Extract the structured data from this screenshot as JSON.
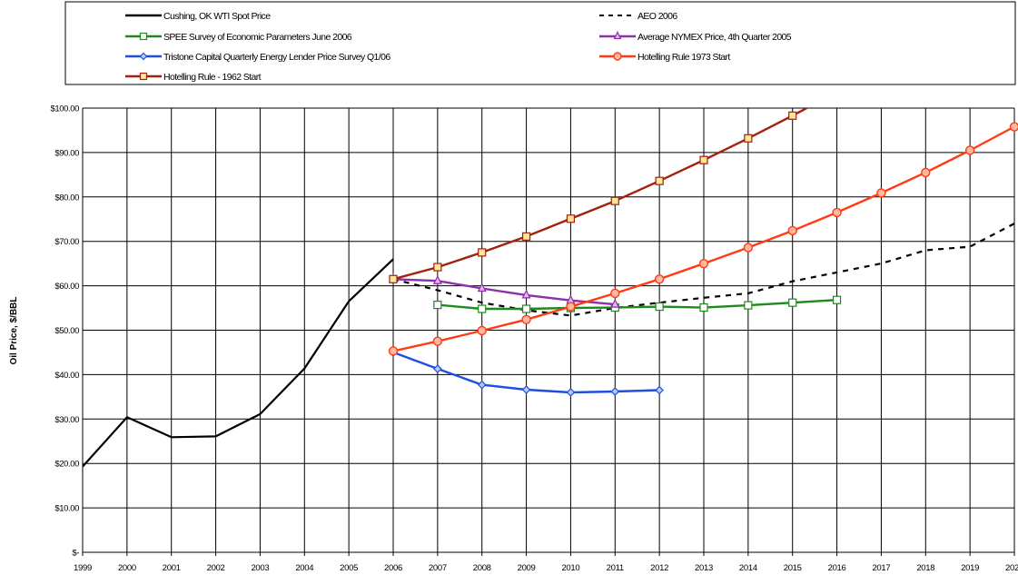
{
  "chart_data": {
    "type": "line",
    "title": "",
    "xlabel": "",
    "ylabel": "Oil Price, $/BBL",
    "xlim": [
      1999,
      2020
    ],
    "ylim": [
      0,
      100
    ],
    "grid": true,
    "legend_position": "top",
    "x_ticks": [
      "1999",
      "2000",
      "2001",
      "2002",
      "2003",
      "2004",
      "2005",
      "2006",
      "2007",
      "2008",
      "2009",
      "2010",
      "2011",
      "2012",
      "2013",
      "2014",
      "2015",
      "2016",
      "2017",
      "2018",
      "2019",
      "2020"
    ],
    "y_ticks": [
      "$-",
      "$10.00",
      "$20.00",
      "$30.00",
      "$40.00",
      "$50.00",
      "$60.00",
      "$70.00",
      "$80.00",
      "$90.00",
      "$100.00"
    ],
    "series": [
      {
        "name": "Cushing, OK WTI Spot Price",
        "color": "#000000",
        "dash": "solid",
        "marker": "none",
        "x": [
          1999,
          2000,
          2001,
          2002,
          2003,
          2004,
          2005,
          2006
        ],
        "values": [
          19.3,
          30.4,
          25.9,
          26.1,
          31.1,
          41.4,
          56.5,
          66.0
        ]
      },
      {
        "name": "AEO 2006",
        "color": "#000000",
        "dash": "dashed",
        "marker": "none",
        "x": [
          2006,
          2007,
          2008,
          2009,
          2010,
          2011,
          2012,
          2013,
          2014,
          2015,
          2016,
          2017,
          2018,
          2019,
          2020
        ],
        "values": [
          61.5,
          59.0,
          56.2,
          54.5,
          53.3,
          55.0,
          56.2,
          57.3,
          58.3,
          61.0,
          63.0,
          65.0,
          68.0,
          68.8,
          74.0
        ]
      },
      {
        "name": "SPEE Survey of Economic Parameters June 2006",
        "color": "#1e8a1e",
        "dash": "solid",
        "marker": "square",
        "x": [
          2007,
          2008,
          2009,
          2010,
          2011,
          2012,
          2013,
          2014,
          2015,
          2016
        ],
        "values": [
          55.7,
          54.8,
          54.8,
          55.0,
          55.1,
          55.3,
          55.1,
          55.6,
          56.2,
          56.8
        ]
      },
      {
        "name": "Average NYMEX Price, 4th Quarter 2005",
        "color": "#8e2ea8",
        "dash": "solid",
        "marker": "triangle",
        "x": [
          2006,
          2007,
          2008,
          2009,
          2010,
          2011
        ],
        "values": [
          61.5,
          61.1,
          59.4,
          57.9,
          56.7,
          55.8
        ]
      },
      {
        "name": "Tristone Capital Quarterly Energy Lender Price Survey Q1/06",
        "color": "#1f4fe0",
        "dash": "solid",
        "marker": "diamond",
        "x": [
          2006,
          2007,
          2008,
          2009,
          2010,
          2011,
          2012
        ],
        "values": [
          45.0,
          41.3,
          37.7,
          36.6,
          36.0,
          36.2,
          36.5
        ]
      },
      {
        "name": "Hotelling Rule 1973 Start",
        "color": "#ff3b14",
        "dash": "solid",
        "marker": "circle",
        "x": [
          2006,
          2007,
          2008,
          2009,
          2010,
          2011,
          2012,
          2013,
          2014,
          2015,
          2016,
          2017,
          2018,
          2019,
          2020
        ],
        "values": [
          45.3,
          47.5,
          49.9,
          52.4,
          55.3,
          58.3,
          61.5,
          65.0,
          68.6,
          72.4,
          76.5,
          80.9,
          85.5,
          90.5,
          95.8
        ]
      },
      {
        "name": "Hotelling Rule - 1962 Start",
        "color": "#a3200f",
        "dash": "solid",
        "marker": "square-filled",
        "x": [
          2006,
          2007,
          2008,
          2009,
          2010,
          2011,
          2012,
          2013,
          2014,
          2015,
          2015.6
        ],
        "values": [
          61.5,
          64.2,
          67.5,
          71.1,
          75.1,
          79.1,
          83.6,
          88.3,
          93.2,
          98.3,
          101.5
        ]
      }
    ]
  }
}
